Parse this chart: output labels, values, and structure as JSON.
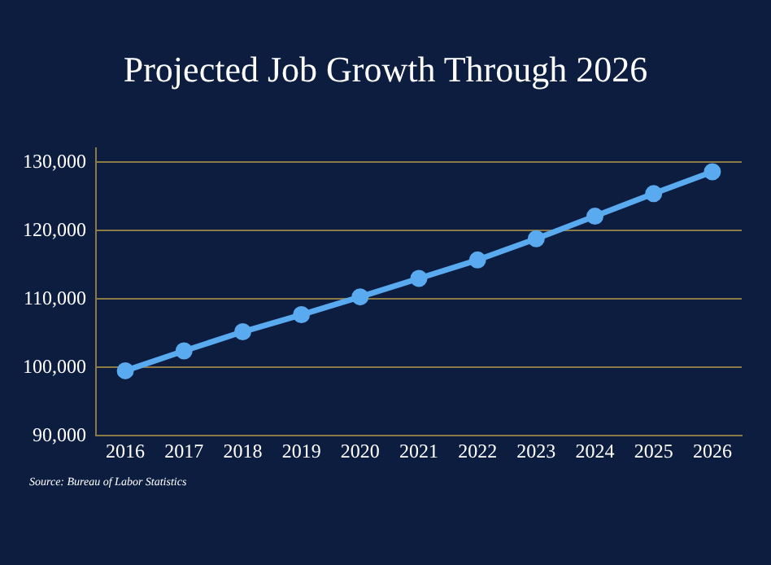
{
  "chart_data": {
    "type": "line",
    "title": "Projected Job Growth Through 2026",
    "categories": [
      "2016",
      "2017",
      "2018",
      "2019",
      "2020",
      "2021",
      "2022",
      "2023",
      "2024",
      "2025",
      "2026"
    ],
    "series": [
      {
        "color": "#5aaaf0",
        "values": [
          99500,
          102400,
          105200,
          107700,
          110300,
          113000,
          115700,
          118800,
          122100,
          125400,
          128600
        ]
      }
    ],
    "ylim": [
      90000,
      132000
    ],
    "yticks": [
      {
        "value": 90000,
        "label": "90,000"
      },
      {
        "value": 100000,
        "label": "100,000"
      },
      {
        "value": 110000,
        "label": "110,000"
      },
      {
        "value": 120000,
        "label": "120,000"
      },
      {
        "value": 130000,
        "label": "130,000"
      }
    ],
    "grid": "y",
    "legend": false,
    "marker": "circle",
    "line_style": "solid",
    "annotations": [
      "Source: Bureau of Labor Statistics"
    ]
  }
}
